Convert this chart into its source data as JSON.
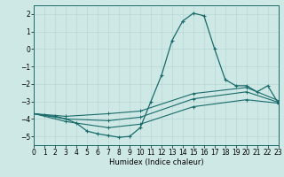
{
  "xlabel": "Humidex (Indice chaleur)",
  "xlim": [
    0,
    23
  ],
  "ylim": [
    -5.5,
    2.5
  ],
  "yticks": [
    2,
    1,
    0,
    -1,
    -2,
    -3,
    -4,
    -5
  ],
  "xticks": [
    0,
    1,
    2,
    3,
    4,
    5,
    6,
    7,
    8,
    9,
    10,
    11,
    12,
    13,
    14,
    15,
    16,
    17,
    18,
    19,
    20,
    21,
    22,
    23
  ],
  "bg_color": "#cde8e5",
  "line_color": "#1a6b6b",
  "grid_color": "#b8d8d4",
  "series0": [
    [
      0,
      -3.7
    ],
    [
      1,
      -3.8
    ],
    [
      2,
      -3.85
    ],
    [
      3,
      -4.0
    ],
    [
      4,
      -4.25
    ],
    [
      5,
      -4.7
    ],
    [
      6,
      -4.85
    ],
    [
      7,
      -4.95
    ],
    [
      8,
      -5.05
    ],
    [
      9,
      -5.0
    ],
    [
      10,
      -4.5
    ],
    [
      11,
      -3.0
    ],
    [
      12,
      -1.5
    ],
    [
      13,
      0.5
    ],
    [
      14,
      1.6
    ],
    [
      15,
      2.05
    ],
    [
      16,
      1.9
    ],
    [
      17,
      0.0
    ],
    [
      18,
      -1.75
    ],
    [
      19,
      -2.1
    ],
    [
      20,
      -2.1
    ],
    [
      21,
      -2.45
    ],
    [
      22,
      -2.1
    ],
    [
      23,
      -3.1
    ]
  ],
  "series1": [
    [
      0,
      -3.7
    ],
    [
      3,
      -3.85
    ],
    [
      7,
      -3.7
    ],
    [
      10,
      -3.55
    ],
    [
      15,
      -2.55
    ],
    [
      20,
      -2.2
    ],
    [
      23,
      -2.95
    ]
  ],
  "series2": [
    [
      0,
      -3.7
    ],
    [
      3,
      -4.0
    ],
    [
      7,
      -4.1
    ],
    [
      10,
      -3.9
    ],
    [
      15,
      -2.85
    ],
    [
      20,
      -2.45
    ],
    [
      23,
      -3.05
    ]
  ],
  "series3": [
    [
      0,
      -3.7
    ],
    [
      3,
      -4.15
    ],
    [
      7,
      -4.5
    ],
    [
      10,
      -4.3
    ],
    [
      15,
      -3.3
    ],
    [
      20,
      -2.9
    ],
    [
      23,
      -3.1
    ]
  ]
}
